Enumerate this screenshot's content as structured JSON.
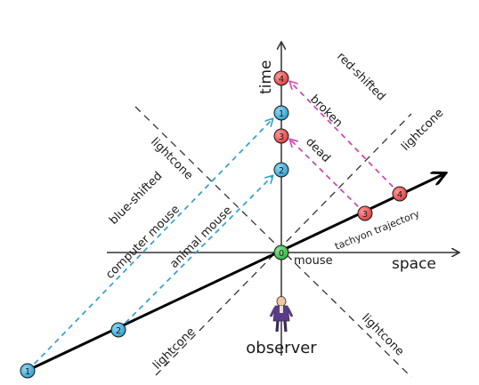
{
  "labels": {
    "time": "time",
    "space": "space",
    "observer": "observer",
    "red_shifted": "red-shifted",
    "blue_shifted": "blue-shifted",
    "lightcone_upper_left": "lightcone",
    "lightcone_upper_right": "lightcone",
    "lightcone_lower_left": "lightcone",
    "lightcone_lower_right": "lightcone",
    "broken": "broken",
    "dead": "dead",
    "computer_mouse": "computer mouse",
    "animal_mouse": "animal mouse",
    "mouse": "mouse",
    "tachyon_trajectory": "tachyon trajectory"
  },
  "nodes": {
    "origin": {
      "label": "0",
      "color": "#2db33a"
    },
    "tachyon_1": {
      "label": "1",
      "color": "#2f9fcf"
    },
    "tachyon_2": {
      "label": "2",
      "color": "#2f9fcf"
    },
    "tachyon_3": {
      "label": "3",
      "color": "#e23c3c"
    },
    "tachyon_4": {
      "label": "4",
      "color": "#e23c3c"
    },
    "time_1": {
      "label": "1",
      "color": "#2f9fcf"
    },
    "time_2": {
      "label": "2",
      "color": "#2f9fcf"
    },
    "time_3": {
      "label": "3",
      "color": "#e23c3c"
    },
    "time_4": {
      "label": "4",
      "color": "#e23c3c"
    }
  },
  "colors": {
    "axis": "#333333",
    "lightcone": "#333333",
    "trajectory": "#000000",
    "blue_signal": "#2f9fcf",
    "red_signal": "#d23fb0"
  }
}
